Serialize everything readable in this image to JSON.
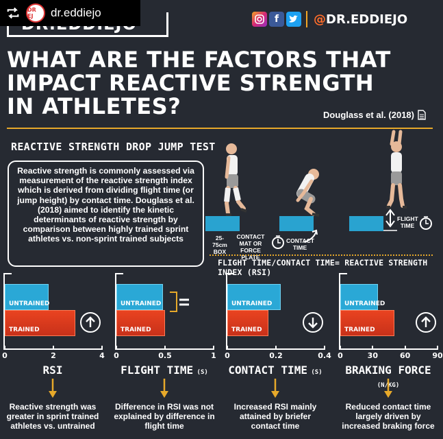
{
  "repost": {
    "username": "dr.eddiejo",
    "avatar_text": "DR EJ"
  },
  "logo": {
    "text": "DR.EDDIEJO"
  },
  "social": {
    "handle": "DR.EDDIEJO",
    "at": "@"
  },
  "title": {
    "line1": "WHAT ARE THE FACTORS THAT",
    "line2": "IMPACT REACTIVE STRENGTH",
    "line3": "IN ATHLETES?"
  },
  "citation": "Douglass et al. (2018)",
  "test_title": "REACTIVE STRENGTH DROP JUMP TEST",
  "info": "Reactive strength is commonly assessed via measurement of the reactive strength index which is derived from dividing flight time (or jump height) by contact time. Douglass et al. (2018) aimed to identify the kinetic determinants of reactive strength by comparison between highly trained sprint athletes vs. non-sprint trained subjects",
  "diagram": {
    "box_label_1": "25-75cm",
    "box_label_2": "BOX",
    "plate_label_1": "CONTACT",
    "plate_label_2": "MAT OR",
    "plate_label_3": "FORCE PLATE",
    "contact_time_1": "CONTACT",
    "contact_time_2": "TIME",
    "flight_time_1": "FLIGHT",
    "flight_time_2": "TIME",
    "formula": "FLIGHT TIME/CONTACT TIME= REACTIVE STRENGTH INDEX (RSI)"
  },
  "colors": {
    "untrained": "#2aa8d6",
    "trained": "#e2401e",
    "accent": "#e7a92a",
    "background": "#262a32"
  },
  "chart_data": [
    {
      "type": "bar",
      "title": "RSI",
      "categories": [
        "UNTRAINED",
        "TRAINED"
      ],
      "values": [
        1.8,
        2.9
      ],
      "xlim": [
        0,
        4
      ],
      "ticks": [
        "0",
        "2",
        "4"
      ],
      "indicator": "up",
      "finding": "Reactive strength was greater in sprint trained athletes vs. untrained"
    },
    {
      "type": "bar",
      "title": "FLIGHT TIME",
      "unit": "(S)",
      "categories": [
        "UNTRAINED",
        "TRAINED"
      ],
      "values": [
        0.48,
        0.5
      ],
      "xlim": [
        0,
        1
      ],
      "ticks": [
        "0",
        "0.5",
        "1"
      ],
      "indicator": "equal",
      "finding": "Difference in RSI was not explained by difference in flight time"
    },
    {
      "type": "bar",
      "title": "CONTACT TIME",
      "unit": "(S)",
      "categories": [
        "UNTRAINED",
        "TRAINED"
      ],
      "values": [
        0.22,
        0.17
      ],
      "xlim": [
        0,
        0.4
      ],
      "ticks": [
        "0",
        "0.2",
        "0.4"
      ],
      "indicator": "down",
      "finding": "Increased RSI mainly attained by briefer contact time"
    },
    {
      "type": "bar",
      "title": "BRAKING FORCE",
      "unit": "(N/KG)",
      "categories": [
        "UNTRAINED",
        "TRAINED"
      ],
      "values": [
        35,
        50
      ],
      "xlim": [
        0,
        90
      ],
      "ticks": [
        "0",
        "30",
        "60",
        "90"
      ],
      "indicator": "up",
      "finding": "Reduced contact time largely driven by increased braking force"
    }
  ]
}
